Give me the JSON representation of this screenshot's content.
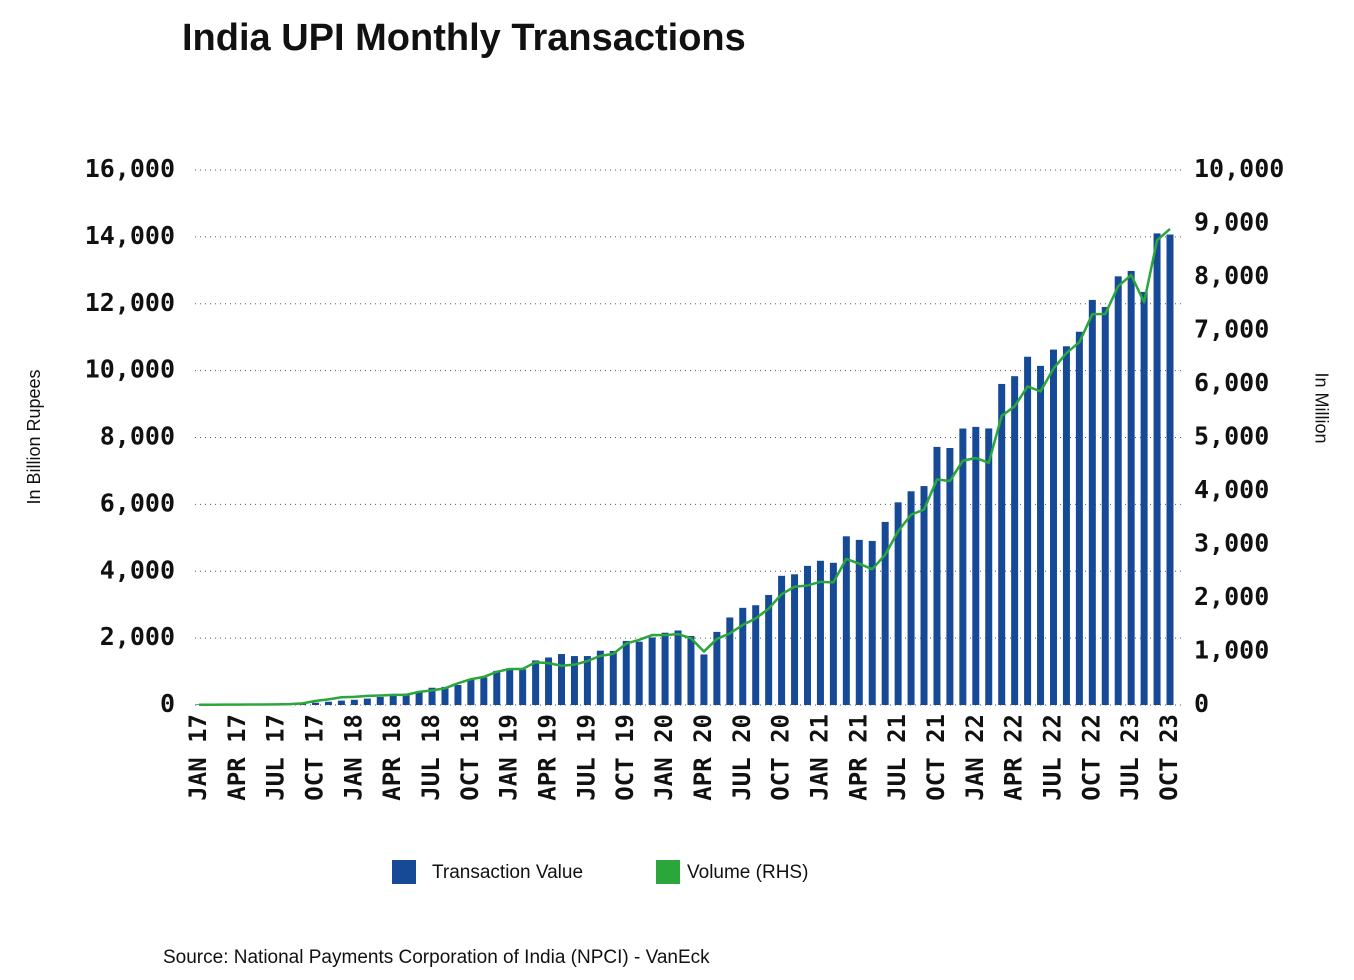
{
  "chart_data": {
    "type": "bar-line",
    "title": "India UPI Monthly Transactions",
    "ylabel": "In Billion Rupees",
    "y2label": "In Million",
    "source": "Source: National Payments Corporation of India (NPCI) - VanEck",
    "categories": [
      "JAN 17",
      null,
      null,
      "APR 17",
      null,
      null,
      "JUL 17",
      null,
      null,
      "OCT 17",
      null,
      null,
      "JAN 18",
      null,
      null,
      "APR 18",
      null,
      null,
      "JUL 18",
      null,
      null,
      "OCT 18",
      null,
      null,
      "JAN 19",
      null,
      null,
      "APR 19",
      null,
      null,
      "JUL 19",
      null,
      null,
      "OCT 19",
      null,
      null,
      "JAN 20",
      null,
      null,
      "APR 20",
      null,
      null,
      "JUL 20",
      null,
      null,
      "OCT 20",
      null,
      null,
      "JAN 21",
      null,
      null,
      "APR 21",
      null,
      null,
      "JUL 21",
      null,
      null,
      "OCT 21",
      null,
      null,
      "JAN 22",
      null,
      null,
      "APR 22",
      null,
      null,
      "JUL 22",
      null,
      null,
      "OCT 22",
      null,
      null,
      "JUL 23",
      null,
      null,
      "OCT 23"
    ],
    "series": [
      {
        "name": "Transaction Value",
        "color": "#174a96",
        "values": [
          17,
          19,
          24,
          23,
          28,
          31,
          38,
          43,
          54,
          70,
          97,
          131,
          156,
          191,
          242,
          271,
          339,
          409,
          516,
          542,
          598,
          749,
          825,
          1021,
          1099,
          1067,
          1334,
          1421,
          1524,
          1464,
          1464,
          1624,
          1617,
          1916,
          1894,
          2021,
          2162,
          2229,
          2066,
          1511,
          2187,
          2618,
          2906,
          2984,
          3290,
          3863,
          3909,
          4161,
          4313,
          4253,
          5045,
          4938,
          4906,
          5475,
          6061,
          6391,
          6547,
          7719,
          7686,
          8268,
          8317,
          8271,
          9602,
          9834,
          10415,
          10142,
          10629,
          10728,
          11163,
          12115,
          11904,
          12820,
          12982,
          12354,
          14105,
          14070
        ]
      },
      {
        "name": "Volume (RHS)",
        "color": "#2aa63a",
        "axis": "y2",
        "values": [
          4.2,
          4.2,
          6.4,
          7.2,
          9.4,
          10.4,
          11.6,
          16.8,
          30.9,
          76.8,
          105,
          145.6,
          152,
          171,
          178,
          190,
          189,
          246,
          274,
          312,
          406,
          482,
          525,
          620,
          673,
          674,
          799,
          782,
          734,
          754,
          822,
          918,
          955,
          1148,
          1218,
          1308,
          1305,
          1326,
          1247,
          999,
          1235,
          1337,
          1497,
          1618,
          1800,
          2071,
          2210,
          2234,
          2302,
          2293,
          2731,
          2641,
          2539,
          2808,
          3248,
          3556,
          3654,
          4216,
          4186,
          4566,
          4617,
          4527,
          5405,
          5583,
          5955,
          5862,
          6288,
          6579,
          6781,
          7305,
          7309,
          7829,
          8037,
          7528,
          8685,
          8898
        ]
      }
    ],
    "ylim": [
      0,
      16000
    ],
    "yticks": [
      0,
      {
        "value": 2000,
        "label": "2,000"
      },
      {
        "value": 4000,
        "label": "4,000"
      },
      {
        "value": 6000,
        "label": "6,000"
      },
      {
        "value": 8000,
        "label": "8,000"
      },
      {
        "value": 10000,
        "label": "10,000"
      },
      {
        "value": 12000,
        "label": "12,000"
      },
      {
        "value": 14000,
        "label": "14,000"
      },
      {
        "value": 16000,
        "label": "16,000"
      }
    ],
    "y2lim": [
      0,
      10000
    ],
    "y2ticks": [
      0,
      {
        "value": 1000,
        "label": "1,000"
      },
      {
        "value": 2000,
        "label": "2,000"
      },
      {
        "value": 3000,
        "label": "3,000"
      },
      {
        "value": 4000,
        "label": "4,000"
      },
      {
        "value": 5000,
        "label": "5,000"
      },
      {
        "value": 6000,
        "label": "6,000"
      },
      {
        "value": 7000,
        "label": "7,000"
      },
      {
        "value": 8000,
        "label": "8,000"
      },
      {
        "value": 9000,
        "label": "9,000"
      },
      {
        "value": 10000,
        "label": "10,000"
      }
    ],
    "grid": true
  }
}
